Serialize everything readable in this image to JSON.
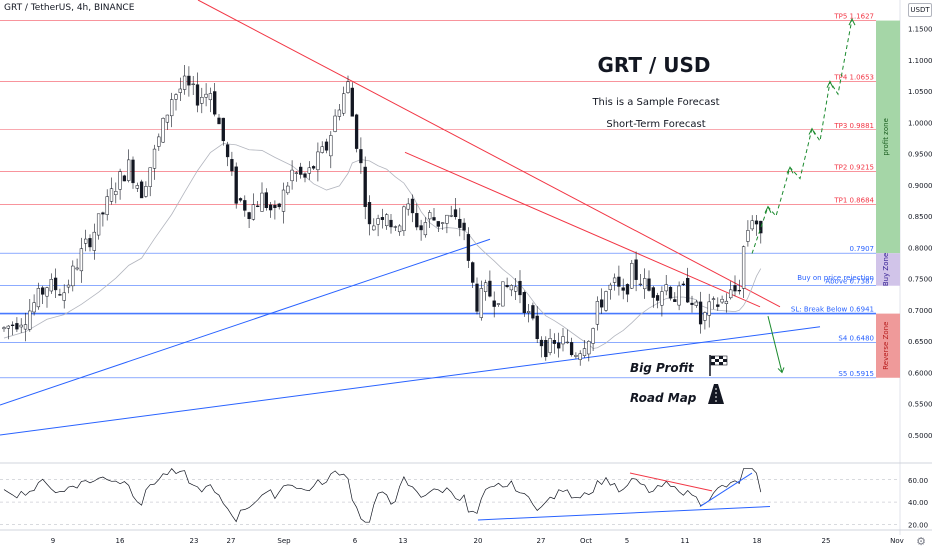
{
  "header": {
    "title": "GRT / TetherUS, 4h, BINANCE",
    "currency": "USDT"
  },
  "chart_data": {
    "type": "candlestick",
    "title": "GRT / USD",
    "subtitle_lines": [
      "This is a Sample Forecast",
      "Short-Term Forecast"
    ],
    "ylim": [
      0.46,
      1.17
    ],
    "y_ticks": [
      "1.1500",
      "1.1000",
      "1.0500",
      "1.0000",
      "0.9500",
      "0.9000",
      "0.8500",
      "0.8000",
      "0.7500",
      "0.7000",
      "0.6500",
      "0.6000",
      "0.5500",
      "0.5000"
    ],
    "x_ticks": [
      "9",
      "16",
      "23",
      "27",
      "Sep",
      "6",
      "13",
      "20",
      "27",
      "Oct",
      "5",
      "11",
      "18",
      "25",
      "Nov"
    ],
    "price_levels": [
      {
        "label": "TP5 1.1627",
        "value": 1.1627,
        "color": "#f23645"
      },
      {
        "label": "TP4 1.0653",
        "value": 1.0653,
        "color": "#f23645"
      },
      {
        "label": "TP3 0.9881",
        "value": 0.9881,
        "color": "#f23645"
      },
      {
        "label": "TP2 0.9215",
        "value": 0.9215,
        "color": "#f23645"
      },
      {
        "label": "TP1 0.8684",
        "value": 0.8684,
        "color": "#f23645"
      },
      {
        "label": "0.7907",
        "value": 0.7907,
        "color": "#2962ff"
      },
      {
        "label": "Buy on price rejection",
        "value": 0.745,
        "color": "#2962ff"
      },
      {
        "label": "Above 0.7387",
        "value": 0.7387,
        "color": "#2962ff"
      },
      {
        "label": "SL: Break Below 0.6941",
        "value": 0.6941,
        "color": "#2962ff"
      },
      {
        "label": "S4 0.6480",
        "value": 0.648,
        "color": "#2962ff"
      },
      {
        "label": "S5 0.5915",
        "value": 0.5915,
        "color": "#2962ff"
      }
    ],
    "zones": [
      {
        "label": "profit zone",
        "from": 0.7907,
        "to": 1.1627,
        "color": "#a5d6a7"
      },
      {
        "label": "Buy Zone",
        "from": 0.7387,
        "to": 0.7907,
        "color": "#d1c4e9"
      },
      {
        "label": "Reverse Zone",
        "from": 0.5915,
        "to": 0.6941,
        "color": "#ef9a9a"
      }
    ],
    "annotations": [
      "Big Profit",
      "Road Map"
    ],
    "close_path": [
      [
        0,
        0.67
      ],
      [
        5,
        0.69
      ],
      [
        10,
        0.74
      ],
      [
        14,
        0.73
      ],
      [
        18,
        0.79
      ],
      [
        22,
        0.84
      ],
      [
        26,
        0.9
      ],
      [
        29,
        0.93
      ],
      [
        32,
        0.89
      ],
      [
        35,
        0.95
      ],
      [
        39,
        1.04
      ],
      [
        42,
        1.06
      ],
      [
        45,
        1.04
      ],
      [
        48,
        1.05
      ],
      [
        51,
        0.97
      ],
      [
        54,
        0.88
      ],
      [
        57,
        0.86
      ],
      [
        60,
        0.88
      ],
      [
        63,
        0.85
      ],
      [
        67,
        0.92
      ],
      [
        70,
        0.91
      ],
      [
        72,
        0.93
      ],
      [
        75,
        0.96
      ],
      [
        78,
        1.03
      ],
      [
        80,
        1.06
      ],
      [
        81,
        1.01
      ],
      [
        83,
        0.93
      ],
      [
        85,
        0.83
      ],
      [
        87,
        0.85
      ],
      [
        89,
        0.86
      ],
      [
        91,
        0.82
      ],
      [
        93,
        0.87
      ],
      [
        95,
        0.85
      ],
      [
        97,
        0.83
      ],
      [
        99,
        0.85
      ],
      [
        101,
        0.84
      ],
      [
        103,
        0.85
      ],
      [
        105,
        0.84
      ],
      [
        107,
        0.83
      ],
      [
        108,
        0.77
      ],
      [
        110,
        0.71
      ],
      [
        112,
        0.73
      ],
      [
        114,
        0.72
      ],
      [
        116,
        0.73
      ],
      [
        118,
        0.74
      ],
      [
        120,
        0.73
      ],
      [
        122,
        0.69
      ],
      [
        124,
        0.66
      ],
      [
        126,
        0.64
      ],
      [
        128,
        0.64
      ],
      [
        130,
        0.65
      ],
      [
        132,
        0.63
      ],
      [
        134,
        0.64
      ],
      [
        136,
        0.66
      ],
      [
        137,
        0.67
      ],
      [
        138,
        0.7
      ],
      [
        140,
        0.73
      ],
      [
        142,
        0.74
      ],
      [
        144,
        0.72
      ],
      [
        146,
        0.76
      ],
      [
        148,
        0.75
      ],
      [
        150,
        0.73
      ],
      [
        152,
        0.73
      ],
      [
        154,
        0.74
      ],
      [
        156,
        0.72
      ],
      [
        158,
        0.73
      ],
      [
        160,
        0.72
      ],
      [
        161,
        0.7
      ],
      [
        162,
        0.68
      ],
      [
        164,
        0.7
      ],
      [
        166,
        0.71
      ],
      [
        168,
        0.72
      ],
      [
        170,
        0.73
      ],
      [
        171,
        0.74
      ],
      [
        172,
        0.8
      ],
      [
        173,
        0.83
      ],
      [
        174,
        0.85
      ],
      [
        175,
        0.84
      ],
      [
        176,
        0.81
      ]
    ],
    "rsi": {
      "y_ticks": [
        "60.00",
        "40.00",
        "20.00"
      ],
      "ylim": [
        15,
        75
      ]
    }
  }
}
